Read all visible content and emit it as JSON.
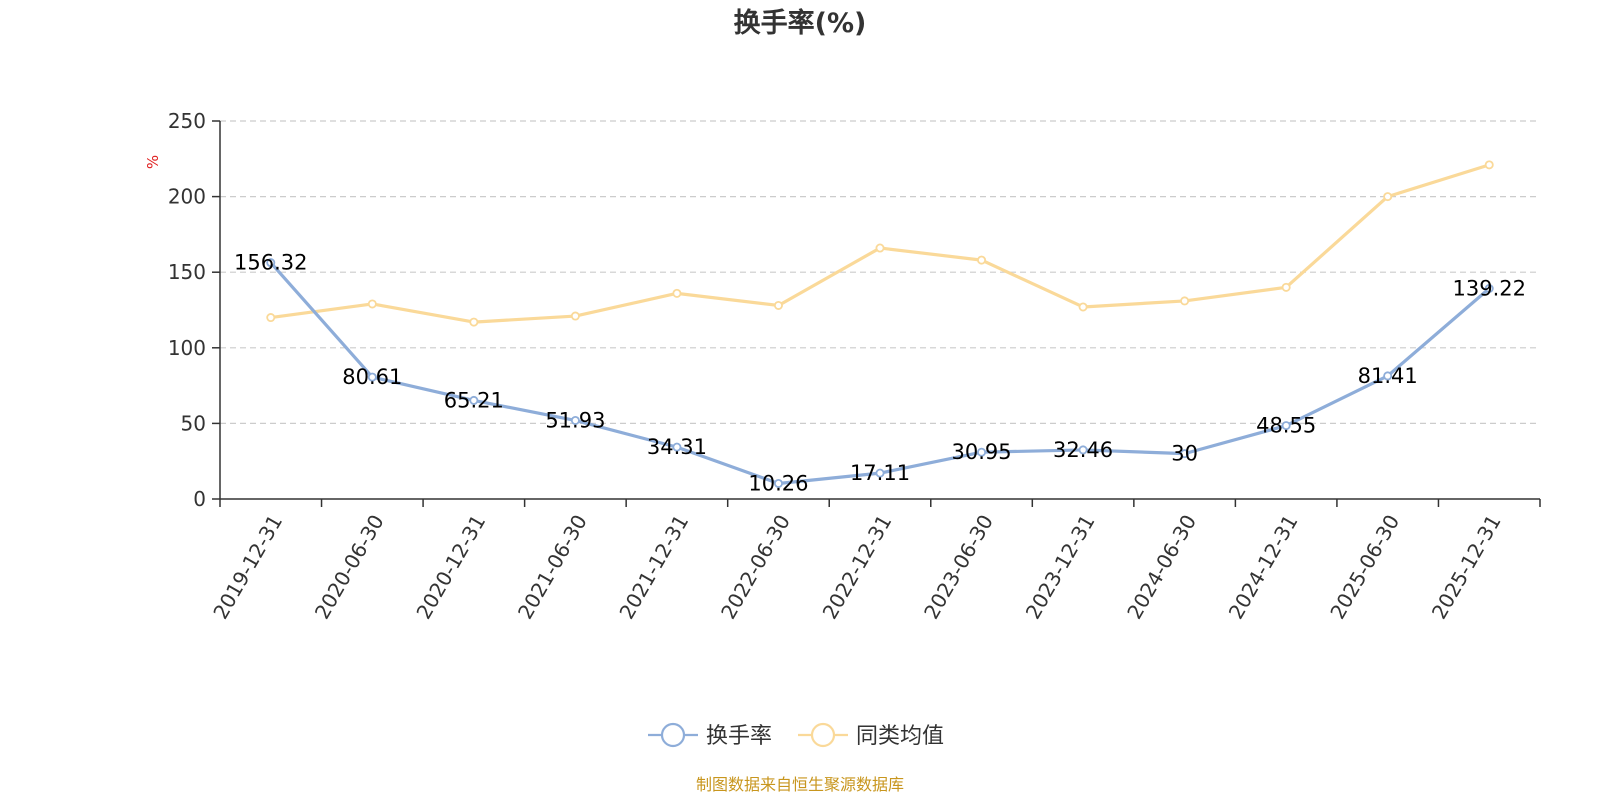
{
  "chart_data": {
    "type": "line",
    "title": "换手率(%)",
    "ylabel": "%",
    "ylim": [
      0,
      250
    ],
    "yticks": [
      0,
      50,
      100,
      150,
      200,
      250
    ],
    "grid": true,
    "legend_position": "bottom",
    "categories": [
      "2019-12-31",
      "2020-06-30",
      "2020-12-31",
      "2021-06-30",
      "2021-12-31",
      "2022-06-30",
      "2022-12-31",
      "2023-06-30",
      "2023-12-31",
      "2024-06-30",
      "2024-12-31",
      "2025-06-30",
      "2025-12-31"
    ],
    "series": [
      {
        "name": "换手率",
        "color": "#8eadd9",
        "values": [
          156.32,
          80.61,
          65.21,
          51.93,
          34.31,
          10.26,
          17.11,
          30.95,
          32.46,
          30,
          48.55,
          81.41,
          139.22
        ],
        "labels": [
          "156.32",
          "80.61",
          "65.21",
          "51.93",
          "34.31",
          "10.26",
          "17.11",
          "30.95",
          "32.46",
          "30",
          "48.55",
          "81.41",
          "139.22"
        ]
      },
      {
        "name": "同类均值",
        "color": "#fad999",
        "values": [
          120,
          129,
          117,
          121,
          136,
          128,
          166,
          158,
          127,
          131,
          140,
          200,
          221
        ]
      }
    ]
  },
  "unit_color": "#e02020",
  "source": {
    "text": "制图数据来自恒生聚源数据库",
    "color": "#c8961e"
  }
}
